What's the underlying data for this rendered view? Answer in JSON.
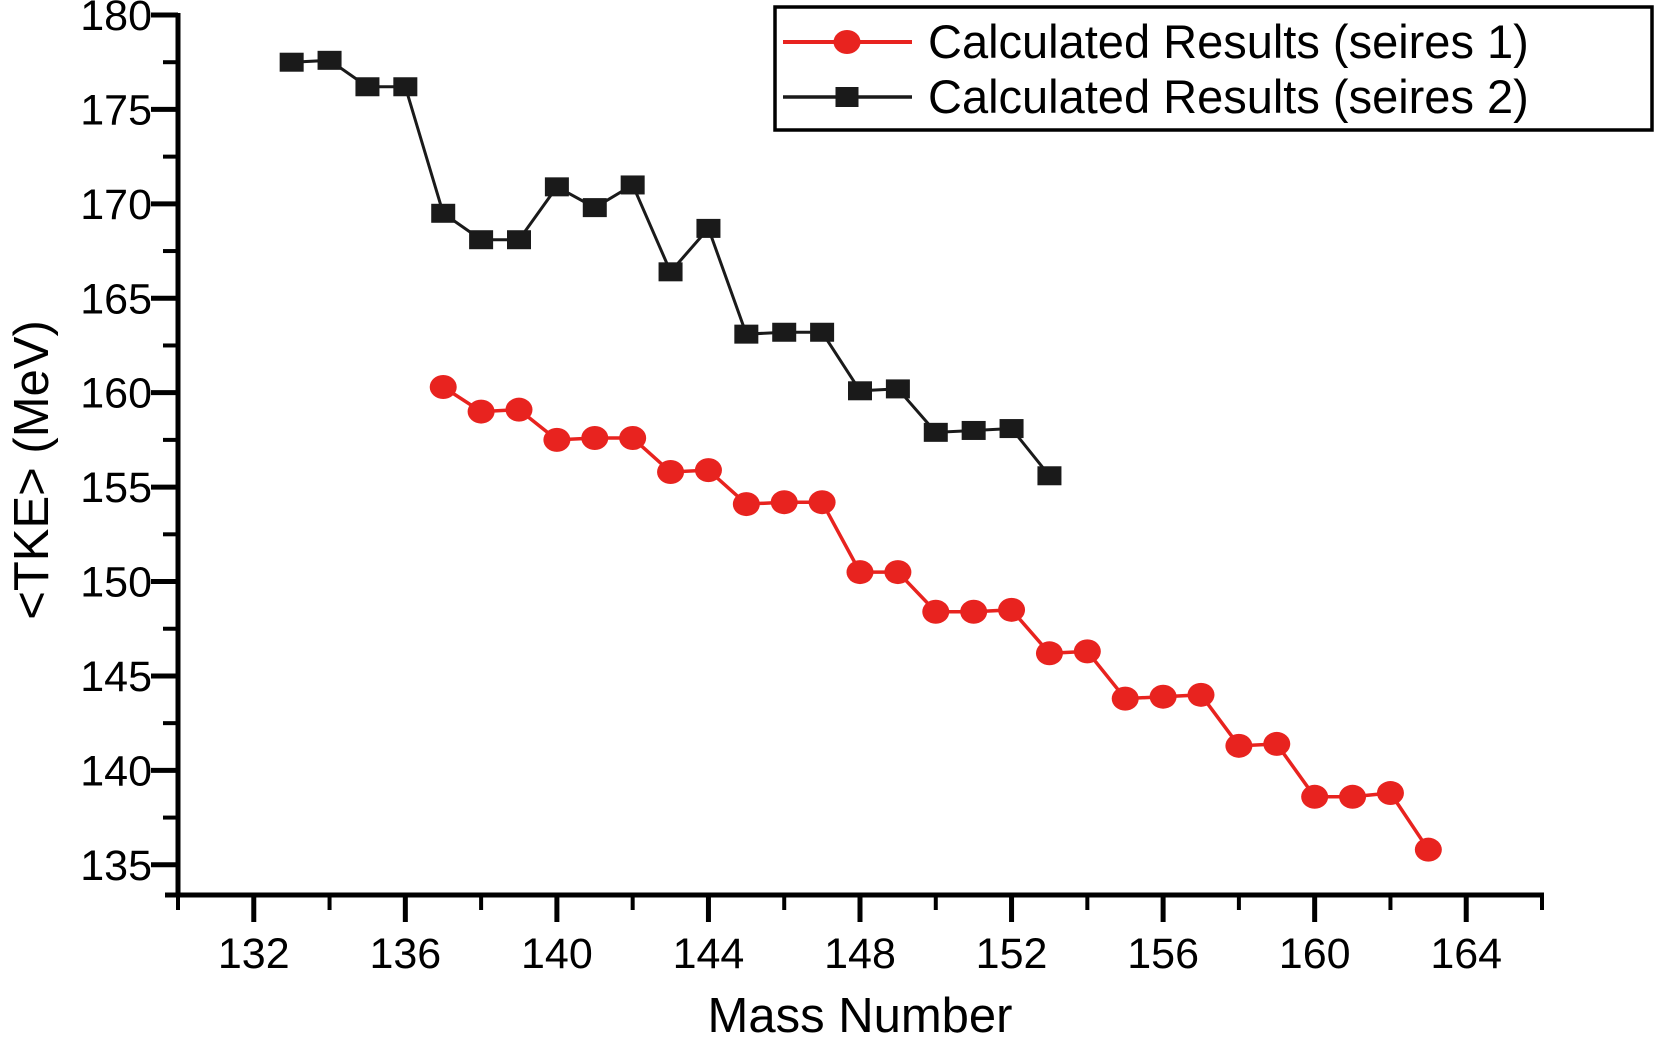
{
  "chart_data": {
    "type": "line",
    "title": "",
    "xlabel": "Mass Number",
    "ylabel": "<TKE> (MeV)",
    "xlim": [
      130,
      166
    ],
    "ylim": [
      133.4,
      180
    ],
    "x_major_ticks": [
      132,
      136,
      140,
      144,
      148,
      152,
      156,
      160,
      164
    ],
    "x_minor_ticks": [
      130,
      134,
      138,
      142,
      146,
      150,
      154,
      158,
      162,
      166
    ],
    "y_major_ticks": [
      135,
      140,
      145,
      150,
      155,
      160,
      165,
      170,
      175,
      180
    ],
    "y_minor_ticks": [
      137.5,
      142.5,
      147.5,
      152.5,
      157.5,
      162.5,
      167.5,
      172.5,
      177.5
    ],
    "grid": false,
    "legend_position": "top-right",
    "series": [
      {
        "name": "Calculated Results (seires 1)",
        "color": "#e8231f",
        "marker": "circle",
        "x": [
          137,
          138,
          139,
          140,
          141,
          142,
          143,
          144,
          145,
          146,
          147,
          148,
          149,
          150,
          151,
          152,
          153,
          154,
          155,
          156,
          157,
          158,
          159,
          160,
          161,
          162,
          163
        ],
        "y": [
          160.3,
          159.0,
          159.1,
          157.5,
          157.6,
          157.6,
          155.8,
          155.9,
          154.1,
          154.2,
          154.2,
          150.5,
          150.5,
          148.4,
          148.4,
          148.5,
          146.2,
          146.3,
          143.8,
          143.9,
          144.0,
          141.3,
          141.4,
          138.6,
          138.6,
          138.8,
          135.8
        ]
      },
      {
        "name": "Calculated Results (seires 2)",
        "color": "#1a1a1a",
        "marker": "square",
        "x": [
          133,
          134,
          135,
          136,
          137,
          138,
          139,
          140,
          141,
          142,
          143,
          144,
          145,
          146,
          147,
          148,
          149,
          150,
          151,
          152,
          153
        ],
        "y": [
          177.5,
          177.6,
          176.2,
          176.2,
          169.5,
          168.1,
          168.1,
          170.9,
          169.8,
          171.0,
          166.4,
          168.7,
          163.1,
          163.2,
          163.2,
          160.1,
          160.2,
          157.9,
          158.0,
          158.1,
          155.6
        ]
      }
    ]
  }
}
